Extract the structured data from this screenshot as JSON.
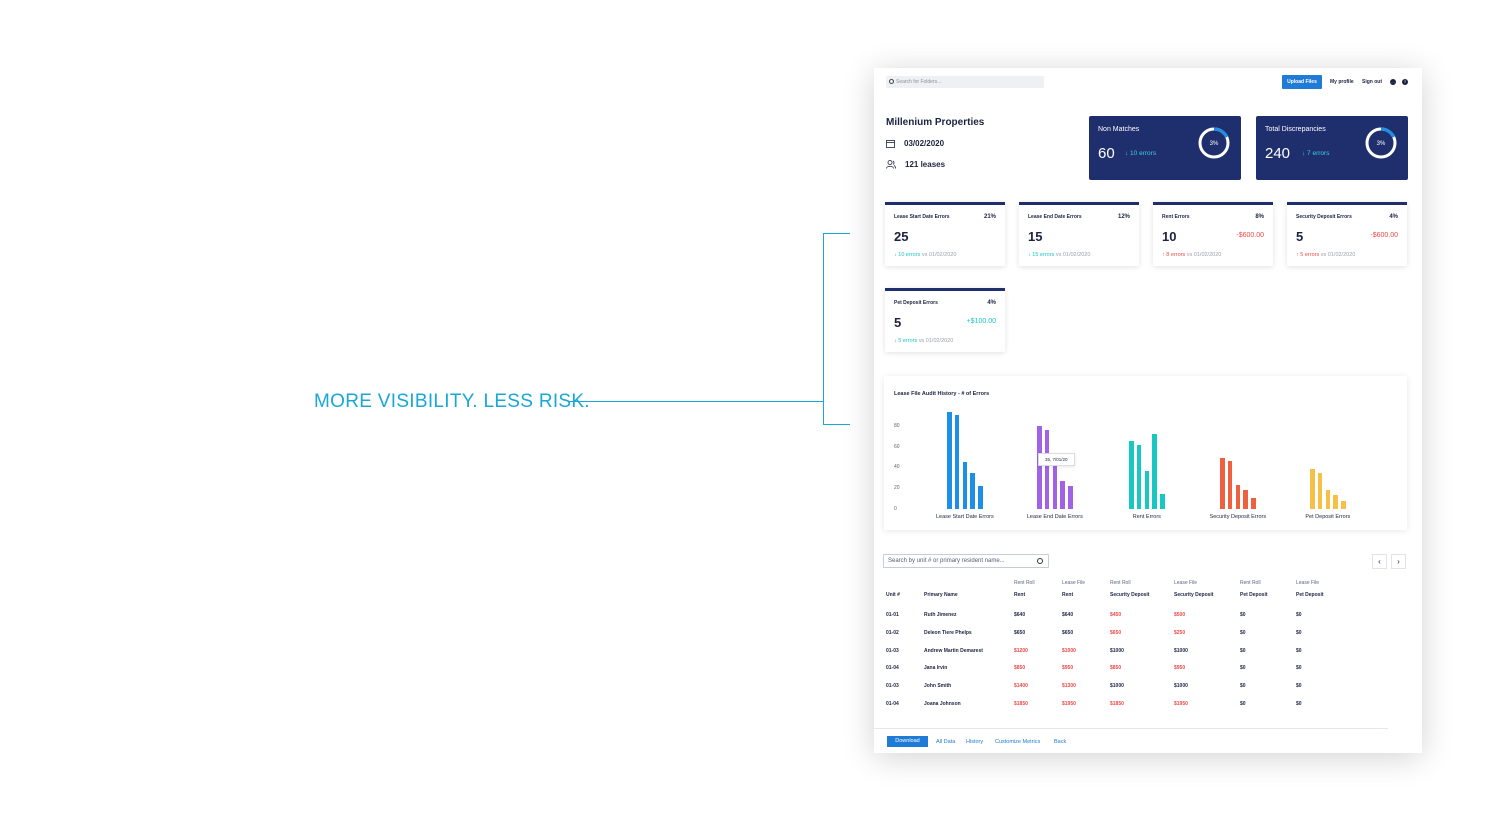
{
  "tagline": "MORE VISIBILITY. LESS RISK.",
  "topbar": {
    "search_placeholder": "Search for Folders...",
    "upload_label": "Upload Files",
    "profile_label": "My profile",
    "signout_label": "Sign out",
    "icons": [
      "chat-icon",
      "help-icon"
    ]
  },
  "property": {
    "title": "Millenium Properties",
    "date": "03/02/2020",
    "leases": "121 leases"
  },
  "summary": [
    {
      "label": "Non Matches",
      "value": "60",
      "change": "↓ 10 errors",
      "ring_pct": "3%",
      "ring_fraction": 0.18
    },
    {
      "label": "Total Discrepancies",
      "value": "240",
      "change": "↓ 7 errors",
      "ring_pct": "3%",
      "ring_fraction": 0.18
    }
  ],
  "metrics": [
    {
      "label": "Lease Start Date Errors",
      "pct": "21%",
      "value": "25",
      "amount": "",
      "change": "↓ 10 errors",
      "vs": "vs 01/02/2020",
      "trend": "down"
    },
    {
      "label": "Lease End Date Errors",
      "pct": "12%",
      "value": "15",
      "amount": "",
      "change": "↓ 15 errors",
      "vs": "vs 01/02/2020",
      "trend": "down"
    },
    {
      "label": "Rent Errors",
      "pct": "8%",
      "value": "10",
      "amount": "-$600.00",
      "change": "↑ 8 errors",
      "vs": "vs 01/02/2020",
      "trend": "up"
    },
    {
      "label": "Security Deposit Errors",
      "pct": "4%",
      "value": "5",
      "amount": "-$600.00",
      "change": "↑ 5 errors",
      "vs": "vs 01/02/2020",
      "trend": "up"
    },
    {
      "label": "Pet Deposit Errors",
      "pct": "4%",
      "value": "5",
      "amount": "+$100.00",
      "change": "↓ 5 errors",
      "vs": "vs 01/02/2020",
      "trend": "down"
    }
  ],
  "chart_data": {
    "type": "bar",
    "title": "Lease File Audit History - # of Errors",
    "xlabel": "",
    "ylabel": "",
    "yticks": [
      "0",
      "20",
      "40",
      "60",
      "80"
    ],
    "ylim": [
      0,
      100
    ],
    "categories": [
      "Lease Start Date Errors",
      "Lease End Date Errors",
      "Rent Errors",
      "Security Deposit Errors",
      "Pet Deposit Errors"
    ],
    "groups": [
      {
        "color": "#1e8fe6",
        "values": [
          93,
          90,
          45,
          35,
          22
        ]
      },
      {
        "color": "#a162e8",
        "values": [
          80,
          76,
          44,
          27,
          22
        ]
      },
      {
        "color": "#18c8c0",
        "values": [
          65,
          62,
          37,
          72,
          14
        ]
      },
      {
        "color": "#ee6140",
        "values": [
          49,
          46,
          23,
          18,
          11
        ]
      },
      {
        "color": "#f6bf46",
        "values": [
          38,
          35,
          18,
          13,
          8
        ]
      }
    ],
    "tooltip": "35, 7/01/20",
    "grid": false
  },
  "table": {
    "search_placeholder": "Search by unit # or primary resident name...",
    "prev": "‹",
    "next": "›",
    "header_top": [
      "",
      "",
      "Rent Roll",
      "Lease File",
      "Rent Roll",
      "Lease File",
      "Rent Roll",
      "Lease File"
    ],
    "header": [
      "Unit #",
      "Primary Name",
      "Rent",
      "Rent",
      "Security Deposit",
      "Security Deposit",
      "Pet Deposit",
      "Pet Deposit"
    ],
    "rows": [
      {
        "unit": "01-01",
        "name": "Ruth Jimenez",
        "c": [
          {
            "v": "$640",
            "r": false
          },
          {
            "v": "$640",
            "r": false
          },
          {
            "v": "$450",
            "r": true
          },
          {
            "v": "$500",
            "r": true
          },
          {
            "v": "$0",
            "r": false
          },
          {
            "v": "$0",
            "r": false
          }
        ]
      },
      {
        "unit": "01-02",
        "name": "Deleon Tiere Phelps",
        "c": [
          {
            "v": "$650",
            "r": false
          },
          {
            "v": "$650",
            "r": false
          },
          {
            "v": "$650",
            "r": true
          },
          {
            "v": "$250",
            "r": true
          },
          {
            "v": "$0",
            "r": false
          },
          {
            "v": "$0",
            "r": false
          }
        ]
      },
      {
        "unit": "01-03",
        "name": "Andrew Martin Demarest",
        "c": [
          {
            "v": "$1200",
            "r": true
          },
          {
            "v": "$1000",
            "r": true
          },
          {
            "v": "$1000",
            "r": false
          },
          {
            "v": "$1000",
            "r": false
          },
          {
            "v": "$0",
            "r": false
          },
          {
            "v": "$0",
            "r": false
          }
        ]
      },
      {
        "unit": "01-04",
        "name": "Jana Irvin",
        "c": [
          {
            "v": "$850",
            "r": true
          },
          {
            "v": "$950",
            "r": true
          },
          {
            "v": "$850",
            "r": true
          },
          {
            "v": "$950",
            "r": true
          },
          {
            "v": "$0",
            "r": false
          },
          {
            "v": "$0",
            "r": false
          }
        ]
      },
      {
        "unit": "01-03",
        "name": "John Smith",
        "c": [
          {
            "v": "$1400",
            "r": true
          },
          {
            "v": "$1300",
            "r": true
          },
          {
            "v": "$1000",
            "r": false
          },
          {
            "v": "$1000",
            "r": false
          },
          {
            "v": "$0",
            "r": false
          },
          {
            "v": "$0",
            "r": false
          }
        ]
      },
      {
        "unit": "01-04",
        "name": "Joana Johnson",
        "c": [
          {
            "v": "$1850",
            "r": true
          },
          {
            "v": "$1950",
            "r": true
          },
          {
            "v": "$1850",
            "r": true
          },
          {
            "v": "$1950",
            "r": true
          },
          {
            "v": "$0",
            "r": false
          },
          {
            "v": "$0",
            "r": false
          }
        ]
      }
    ]
  },
  "footer": {
    "download": "Download",
    "links": [
      "All Data",
      "History",
      "Customize Metrics",
      "Back"
    ]
  }
}
